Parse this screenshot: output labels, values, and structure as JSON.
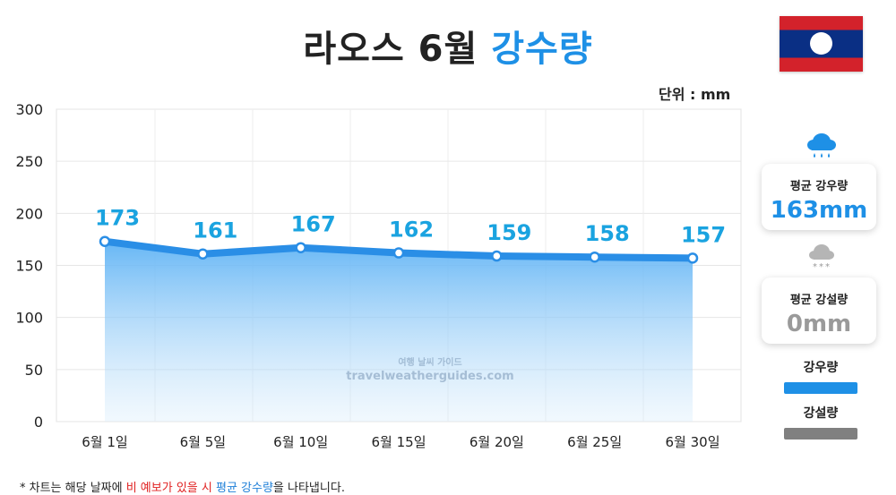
{
  "header": {
    "title_main": "라오스 6월",
    "title_accent": "강수량",
    "unit": "단위 : mm"
  },
  "colors": {
    "rain": "#1e90e6",
    "snow": "#808080",
    "accent_text": "#1e90e6",
    "label_text": "#1aa3e0"
  },
  "chart_data": {
    "type": "area",
    "categories": [
      "6월 1일",
      "6월 5일",
      "6월 10일",
      "6월 15일",
      "6월 20일",
      "6월 25일",
      "6월 30일"
    ],
    "series": [
      {
        "name": "강우량",
        "values": [
          173,
          161,
          167,
          162,
          159,
          158,
          157
        ]
      }
    ],
    "ylim": [
      0,
      300
    ],
    "yticks": [
      0,
      50,
      100,
      150,
      200,
      250,
      300
    ],
    "grid": true,
    "legend_position": "right"
  },
  "watermark": {
    "line1": "여행 날씨 가이드",
    "line2": "travelweatherguides.com"
  },
  "sidebar": {
    "rain_card": {
      "label": "평균 강우량",
      "value": "163mm"
    },
    "snow_card": {
      "label": "평균 강설량",
      "value": "0mm"
    },
    "legend": [
      {
        "label": "강우량",
        "color": "#1e90e6"
      },
      {
        "label": "강설량",
        "color": "#808080"
      }
    ],
    "icons": [
      "rain-cloud-icon",
      "snow-cloud-icon"
    ]
  },
  "footnote": {
    "prefix": "* 차트는 해당 날짜에 ",
    "red": "비 예보가 있을 시",
    "middle": " ",
    "blue": "평균 강수량",
    "suffix": "을 나타냅니다."
  }
}
